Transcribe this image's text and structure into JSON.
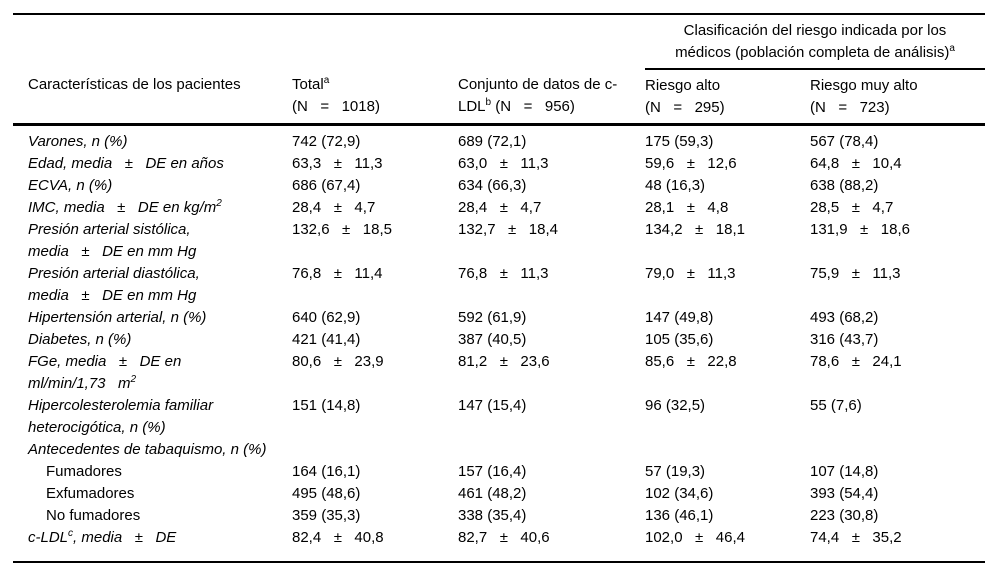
{
  "colors": {
    "background": "#ffffff",
    "text": "#000000",
    "rule": "#000000"
  },
  "table": {
    "span_header": "Clasificación del riesgo indicada por los\nmédicos (población completa de análisis)^{a}",
    "columns": [
      {
        "label": "Características de los pacientes"
      },
      {
        "label": "Total^{a}\n(N   =   1018)"
      },
      {
        "label": "Conjunto de datos de c-\nLDL^{b} (N   =   956)"
      },
      {
        "label": "Riesgo alto\n(N   =   295)"
      },
      {
        "label": "Riesgo muy alto\n(N   =   723)"
      }
    ],
    "rows": [
      {
        "label": "Varones, n (%)",
        "italic": true,
        "indent": false,
        "values": [
          "742 (72,9)",
          "689 (72,1)",
          "175 (59,3)",
          "567 (78,4)"
        ]
      },
      {
        "label": "Edad, media   ±   DE en años",
        "italic": true,
        "indent": false,
        "values": [
          "63,3   ±   11,3",
          "63,0   ±   11,3",
          "59,6   ±   12,6",
          "64,8   ±   10,4"
        ]
      },
      {
        "label": "ECVA, n (%)",
        "italic": true,
        "indent": false,
        "values": [
          "686 (67,4)",
          "634 (66,3)",
          "48 (16,3)",
          "638 (88,2)"
        ]
      },
      {
        "label": "IMC, media   ±   DE en kg/m^{2}",
        "italic": true,
        "indent": false,
        "values": [
          "28,4   ±   4,7",
          "28,4   ±   4,7",
          "28,1   ±   4,8",
          "28,5   ±   4,7"
        ]
      },
      {
        "label": "Presión arterial sistólica,\nmedia   ±   DE en mm Hg",
        "italic": true,
        "indent": false,
        "values": [
          "132,6   ±   18,5",
          "132,7   ±   18,4",
          "134,2   ±   18,1",
          "131,9   ±   18,6"
        ]
      },
      {
        "label": "Presión arterial diastólica,\nmedia   ±   DE en mm Hg",
        "italic": true,
        "indent": false,
        "values": [
          "76,8   ±   11,4",
          "76,8   ±   11,3",
          "79,0   ±   11,3",
          "75,9   ±   11,3"
        ]
      },
      {
        "label": "Hipertensión arterial, n (%)",
        "italic": true,
        "indent": false,
        "values": [
          "640 (62,9)",
          "592 (61,9)",
          "147 (49,8)",
          "493 (68,2)"
        ]
      },
      {
        "label": "Diabetes, n (%)",
        "italic": true,
        "indent": false,
        "values": [
          "421 (41,4)",
          "387 (40,5)",
          "105 (35,6)",
          "316 (43,7)"
        ]
      },
      {
        "label": "FGe, media   ±   DE en\nml/min/1,73   m^{2}",
        "italic": true,
        "indent": false,
        "values": [
          "80,6   ±   23,9",
          "81,2   ±   23,6",
          "85,6   ±   22,8",
          "78,6   ±   24,1"
        ]
      },
      {
        "label": "Hipercolesterolemia familiar\nheterocigótica, n (%)",
        "italic": true,
        "indent": false,
        "values": [
          "151 (14,8)",
          "147 (15,4)",
          "96 (32,5)",
          "55 (7,6)"
        ]
      },
      {
        "label": "Antecedentes de tabaquismo, n (%)",
        "italic": true,
        "indent": false,
        "values": [
          "",
          "",
          "",
          ""
        ]
      },
      {
        "label": "Fumadores",
        "italic": false,
        "indent": true,
        "values": [
          "164 (16,1)",
          "157 (16,4)",
          "57 (19,3)",
          "107 (14,8)"
        ]
      },
      {
        "label": "Exfumadores",
        "italic": false,
        "indent": true,
        "values": [
          "495 (48,6)",
          "461 (48,2)",
          "102 (34,6)",
          "393 (54,4)"
        ]
      },
      {
        "label": "No fumadores",
        "italic": false,
        "indent": true,
        "values": [
          "359 (35,3)",
          "338 (35,4)",
          "136 (46,1)",
          "223 (30,8)"
        ]
      },
      {
        "label": "c-LDL^{c}, media   ±   DE",
        "italic": true,
        "indent": false,
        "values": [
          "82,4   ±   40,8",
          "82,7   ±   40,6",
          "102,0   ±   46,4",
          "74,4   ±   35,2"
        ]
      }
    ]
  }
}
